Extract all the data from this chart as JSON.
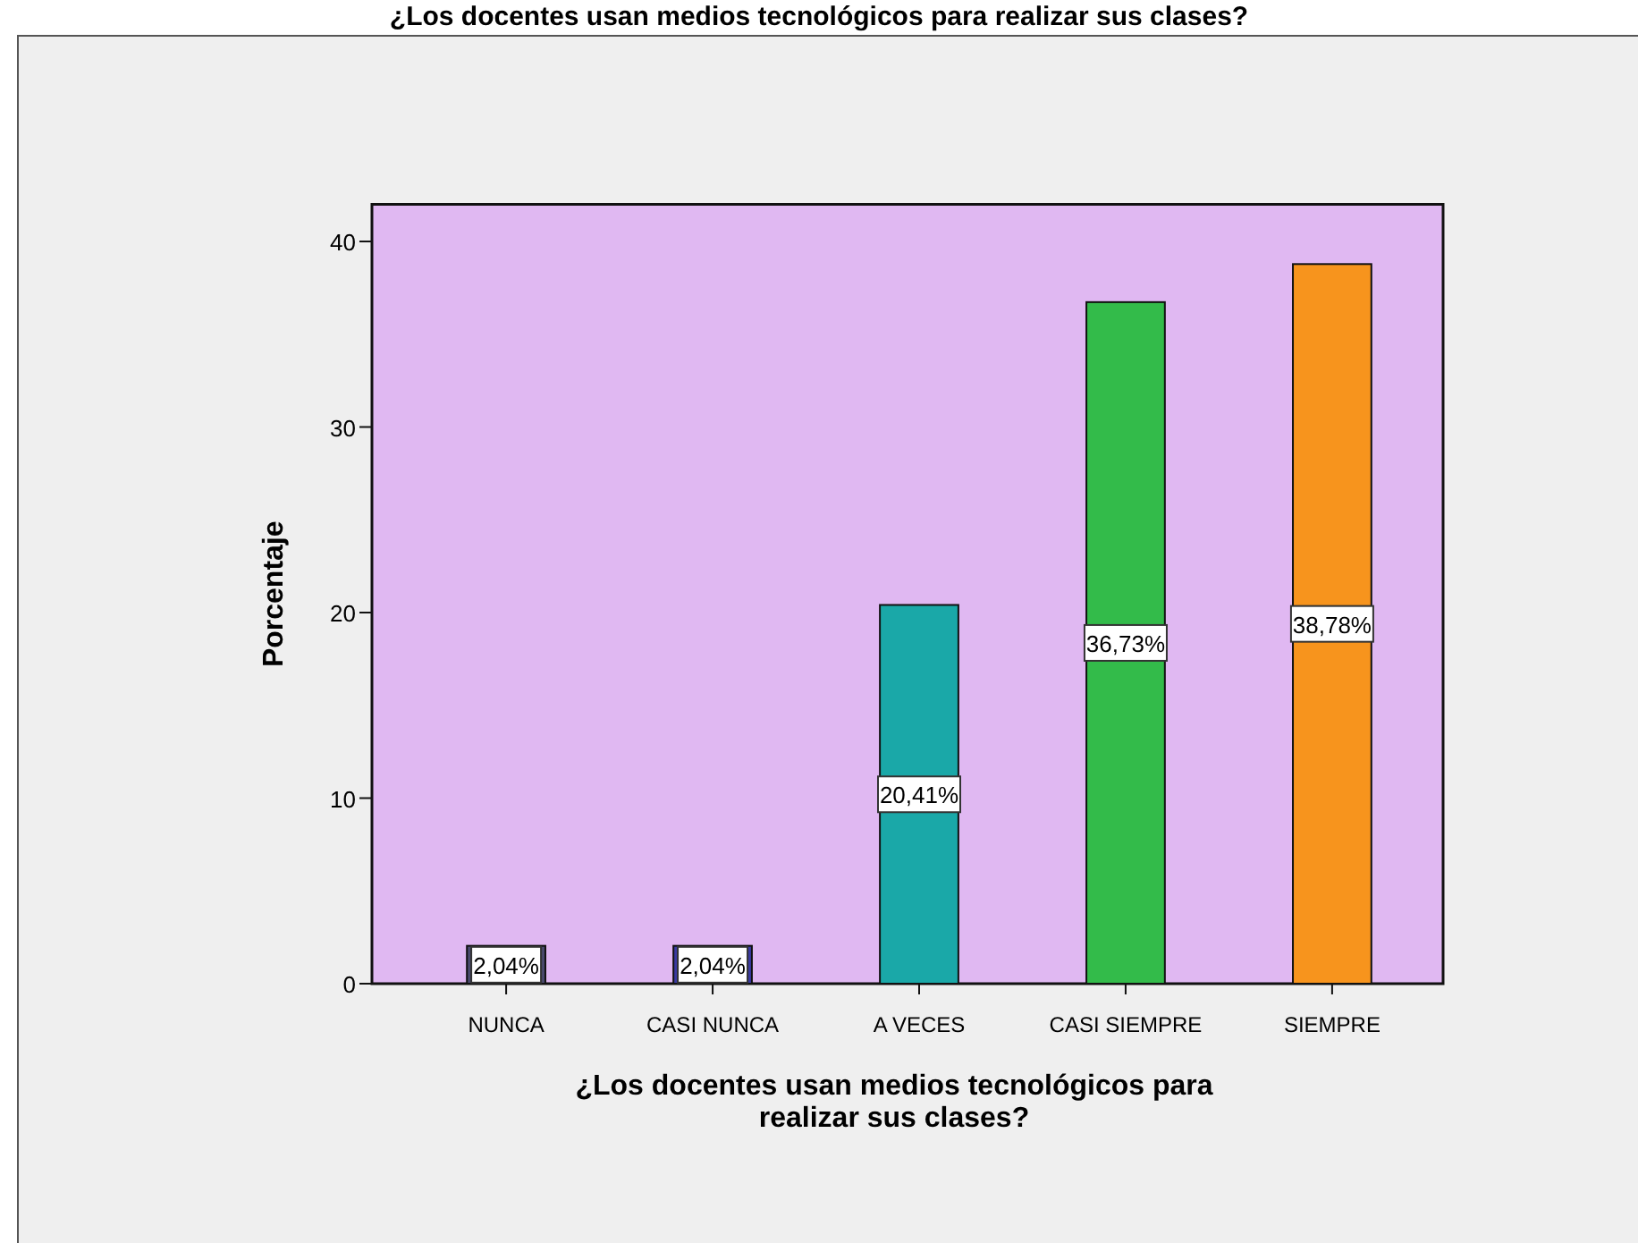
{
  "chart_data": {
    "type": "bar",
    "title": "¿Los docentes usan medios tecnológicos para realizar sus clases?",
    "categories": [
      "NUNCA",
      "CASI NUNCA",
      "A VECES",
      "CASI SIEMPRE",
      "SIEMPRE"
    ],
    "values": [
      2.04,
      2.04,
      20.41,
      36.73,
      38.78
    ],
    "colors": [
      "#4a4a6e",
      "#3a3aa2",
      "#1aa8a8",
      "#33bb4a",
      "#f7941d"
    ],
    "value_labels": [
      "2,04%",
      "2,04%",
      "20,41%",
      "36,73%",
      "38,78%"
    ],
    "xlabel": "¿Los docentes usan medios tecnológicos para realizar sus clases?",
    "ylabel": "Porcentaje",
    "ylim": [
      0,
      42
    ],
    "yticks": [
      0,
      10,
      20,
      30,
      40
    ],
    "grid": false
  }
}
